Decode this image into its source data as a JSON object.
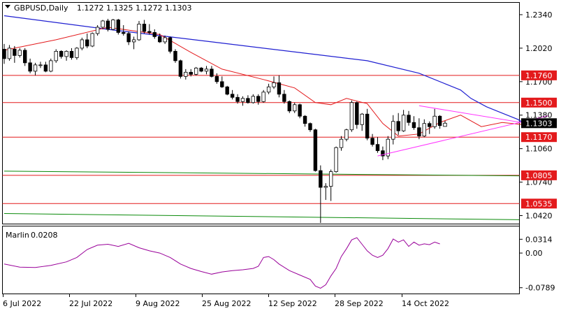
{
  "chart_data": {
    "type": "candlestick",
    "symbol_header": "GBPUSD,Daily",
    "ohlc_header": "1.1272 1.1325 1.1272 1.1303",
    "current_price": "1.1303",
    "price_ticks": [
      "1.2340",
      "1.2020",
      "1.1700",
      "1.1380",
      "1.1060",
      "1.0740",
      "1.0420"
    ],
    "price_levels": [
      {
        "label": "1.1760",
        "value": 1.176
      },
      {
        "label": "1.1500",
        "value": 1.15
      },
      {
        "label": "1.1170",
        "value": 1.117
      },
      {
        "label": "1.0805",
        "value": 1.0805
      },
      {
        "label": "1.0535",
        "value": 1.0535
      }
    ],
    "x_labels": [
      "6 Jul 2022",
      "22 Jul 2022",
      "9 Aug 2022",
      "25 Aug 2022",
      "12 Sep 2022",
      "28 Sep 2022",
      "14 Oct 2022"
    ],
    "ylim": [
      1.037,
      1.24
    ],
    "candles": [
      [
        1.201,
        1.206,
        1.187,
        1.192
      ],
      [
        1.192,
        1.205,
        1.19,
        1.202
      ],
      [
        1.201,
        1.204,
        1.188,
        1.195
      ],
      [
        1.195,
        1.202,
        1.193,
        1.2
      ],
      [
        1.2,
        1.202,
        1.185,
        1.188
      ],
      [
        1.188,
        1.192,
        1.178,
        1.18
      ],
      [
        1.18,
        1.188,
        1.176,
        1.186
      ],
      [
        1.186,
        1.189,
        1.183,
        1.186
      ],
      [
        1.186,
        1.189,
        1.179,
        1.18
      ],
      [
        1.18,
        1.192,
        1.179,
        1.19
      ],
      [
        1.19,
        1.201,
        1.188,
        1.199
      ],
      [
        1.199,
        1.2,
        1.192,
        1.194
      ],
      [
        1.194,
        1.2,
        1.19,
        1.199
      ],
      [
        1.199,
        1.202,
        1.191,
        1.193
      ],
      [
        1.193,
        1.203,
        1.191,
        1.202
      ],
      [
        1.202,
        1.212,
        1.2,
        1.21
      ],
      [
        1.21,
        1.216,
        1.202,
        1.204
      ],
      [
        1.204,
        1.217,
        1.203,
        1.216
      ],
      [
        1.216,
        1.224,
        1.214,
        1.222
      ],
      [
        1.222,
        1.229,
        1.22,
        1.228
      ],
      [
        1.228,
        1.23,
        1.218,
        1.22
      ],
      [
        1.22,
        1.23,
        1.219,
        1.229
      ],
      [
        1.229,
        1.23,
        1.215,
        1.217
      ],
      [
        1.217,
        1.224,
        1.214,
        1.216
      ],
      [
        1.216,
        1.218,
        1.205,
        1.208
      ],
      [
        1.208,
        1.213,
        1.201,
        1.21
      ],
      [
        1.21,
        1.228,
        1.209,
        1.225
      ],
      [
        1.225,
        1.229,
        1.216,
        1.218
      ],
      [
        1.218,
        1.225,
        1.215,
        1.217
      ],
      [
        1.217,
        1.22,
        1.211,
        1.213
      ],
      [
        1.213,
        1.216,
        1.207,
        1.208
      ],
      [
        1.208,
        1.214,
        1.206,
        1.212
      ],
      [
        1.212,
        1.213,
        1.197,
        1.199
      ],
      [
        1.199,
        1.201,
        1.188,
        1.19
      ],
      [
        1.19,
        1.191,
        1.173,
        1.175
      ],
      [
        1.175,
        1.182,
        1.172,
        1.179
      ],
      [
        1.179,
        1.182,
        1.175,
        1.177
      ],
      [
        1.177,
        1.184,
        1.176,
        1.183
      ],
      [
        1.183,
        1.184,
        1.179,
        1.18
      ],
      [
        1.18,
        1.185,
        1.177,
        1.182
      ],
      [
        1.182,
        1.185,
        1.174,
        1.175
      ],
      [
        1.175,
        1.178,
        1.168,
        1.17
      ],
      [
        1.17,
        1.175,
        1.164,
        1.165
      ],
      [
        1.165,
        1.166,
        1.157,
        1.158
      ],
      [
        1.158,
        1.162,
        1.153,
        1.155
      ],
      [
        1.155,
        1.158,
        1.149,
        1.151
      ],
      [
        1.151,
        1.156,
        1.147,
        1.154
      ],
      [
        1.154,
        1.157,
        1.149,
        1.15
      ],
      [
        1.15,
        1.158,
        1.149,
        1.156
      ],
      [
        1.156,
        1.158,
        1.148,
        1.151
      ],
      [
        1.151,
        1.162,
        1.15,
        1.16
      ],
      [
        1.16,
        1.168,
        1.158,
        1.165
      ],
      [
        1.165,
        1.175,
        1.163,
        1.169
      ],
      [
        1.169,
        1.176,
        1.155,
        1.158
      ],
      [
        1.158,
        1.162,
        1.149,
        1.151
      ],
      [
        1.151,
        1.152,
        1.14,
        1.142
      ],
      [
        1.142,
        1.15,
        1.14,
        1.148
      ],
      [
        1.148,
        1.149,
        1.135,
        1.137
      ],
      [
        1.137,
        1.138,
        1.127,
        1.13
      ],
      [
        1.13,
        1.131,
        1.122,
        1.124
      ],
      [
        1.124,
        1.125,
        1.084,
        1.085
      ],
      [
        1.085,
        1.09,
        1.035,
        1.069
      ],
      [
        1.069,
        1.073,
        1.057,
        1.07
      ],
      [
        1.07,
        1.086,
        1.056,
        1.084
      ],
      [
        1.084,
        1.108,
        1.083,
        1.107
      ],
      [
        1.107,
        1.118,
        1.104,
        1.115
      ],
      [
        1.115,
        1.125,
        1.113,
        1.124
      ],
      [
        1.124,
        1.152,
        1.122,
        1.15
      ],
      [
        1.15,
        1.151,
        1.125,
        1.129
      ],
      [
        1.129,
        1.14,
        1.123,
        1.139
      ],
      [
        1.139,
        1.144,
        1.114,
        1.116
      ],
      [
        1.116,
        1.12,
        1.108,
        1.11
      ],
      [
        1.11,
        1.117,
        1.102,
        1.104
      ],
      [
        1.104,
        1.108,
        1.095,
        1.099
      ],
      [
        1.099,
        1.118,
        1.096,
        1.115
      ],
      [
        1.115,
        1.138,
        1.11,
        1.132
      ],
      [
        1.132,
        1.14,
        1.119,
        1.123
      ],
      [
        1.123,
        1.143,
        1.122,
        1.138
      ],
      [
        1.138,
        1.142,
        1.128,
        1.131
      ],
      [
        1.131,
        1.137,
        1.124,
        1.126
      ],
      [
        1.126,
        1.135,
        1.115,
        1.118
      ],
      [
        1.118,
        1.134,
        1.117,
        1.13
      ],
      [
        1.13,
        1.132,
        1.12,
        1.127
      ],
      [
        1.127,
        1.144,
        1.125,
        1.137
      ],
      [
        1.137,
        1.138,
        1.125,
        1.128
      ],
      [
        1.1272,
        1.1325,
        1.1272,
        1.1303
      ]
    ],
    "ma_blue": [
      [
        0,
        1.233
      ],
      [
        20,
        1.22
      ],
      [
        40,
        1.208
      ],
      [
        60,
        1.196
      ],
      [
        70,
        1.19
      ],
      [
        80,
        1.178
      ],
      [
        85,
        1.168
      ],
      [
        88,
        1.162
      ],
      [
        90,
        1.154
      ],
      [
        93,
        1.146
      ],
      [
        96,
        1.14
      ],
      [
        99,
        1.134
      ],
      [
        100,
        1.131
      ]
    ],
    "ma_red": [
      [
        0,
        1.2
      ],
      [
        10,
        1.21
      ],
      [
        20,
        1.222
      ],
      [
        30,
        1.215
      ],
      [
        36,
        1.198
      ],
      [
        42,
        1.182
      ],
      [
        50,
        1.172
      ],
      [
        56,
        1.164
      ],
      [
        60,
        1.15
      ],
      [
        63,
        1.148
      ],
      [
        66,
        1.154
      ],
      [
        70,
        1.149
      ],
      [
        73,
        1.13
      ],
      [
        76,
        1.118
      ],
      [
        80,
        1.12
      ],
      [
        84,
        1.131
      ],
      [
        88,
        1.138
      ],
      [
        92,
        1.127
      ],
      [
        96,
        1.131
      ],
      [
        100,
        1.129
      ]
    ],
    "ma_green_1": [
      [
        0,
        1.0845
      ],
      [
        100,
        1.08
      ]
    ],
    "ma_green_2": [
      [
        0,
        1.044
      ],
      [
        100,
        1.038
      ]
    ],
    "triangle_upper": [
      [
        80,
        1.147
      ],
      [
        96,
        1.134
      ]
    ],
    "triangle_lower": [
      [
        72,
        1.099
      ],
      [
        96,
        1.127
      ]
    ],
    "indicator": {
      "name": "Marlin",
      "value_label": "0.0208",
      "ticks": [
        "0.0314",
        "0.00",
        "-0.0789"
      ],
      "ylim": [
        -0.0889,
        0.051
      ],
      "values": [
        [
          0,
          -0.025
        ],
        [
          3,
          -0.032
        ],
        [
          6,
          -0.033
        ],
        [
          9,
          -0.028
        ],
        [
          12,
          -0.02
        ],
        [
          14,
          -0.01
        ],
        [
          16,
          0.008
        ],
        [
          18,
          0.018
        ],
        [
          20,
          0.02
        ],
        [
          22,
          0.015
        ],
        [
          24,
          0.022
        ],
        [
          26,
          0.012
        ],
        [
          28,
          0.005
        ],
        [
          30,
          0.0
        ],
        [
          32,
          -0.01
        ],
        [
          34,
          -0.025
        ],
        [
          36,
          -0.035
        ],
        [
          38,
          -0.042
        ],
        [
          40,
          -0.048
        ],
        [
          42,
          -0.043
        ],
        [
          44,
          -0.04
        ],
        [
          46,
          -0.038
        ],
        [
          48,
          -0.035
        ],
        [
          49,
          -0.03
        ],
        [
          50,
          -0.01
        ],
        [
          51,
          -0.008
        ],
        [
          52,
          -0.015
        ],
        [
          53,
          -0.025
        ],
        [
          55,
          -0.04
        ],
        [
          57,
          -0.05
        ],
        [
          59,
          -0.06
        ],
        [
          60,
          -0.075
        ],
        [
          61,
          -0.08
        ],
        [
          62,
          -0.072
        ],
        [
          63,
          -0.052
        ],
        [
          64,
          -0.035
        ],
        [
          65,
          -0.008
        ],
        [
          66,
          0.01
        ],
        [
          67,
          0.03
        ],
        [
          68,
          0.035
        ],
        [
          69,
          0.02
        ],
        [
          70,
          0.005
        ],
        [
          71,
          -0.005
        ],
        [
          72,
          -0.01
        ],
        [
          73,
          -0.005
        ],
        [
          74,
          0.01
        ],
        [
          75,
          0.032
        ],
        [
          76,
          0.025
        ],
        [
          77,
          0.03
        ],
        [
          78,
          0.015
        ],
        [
          79,
          0.025
        ],
        [
          80,
          0.018
        ],
        [
          81,
          0.021
        ],
        [
          82,
          0.019
        ],
        [
          83,
          0.025
        ],
        [
          84,
          0.0208
        ]
      ]
    }
  },
  "colors": {
    "bull_fill": "#ffffff",
    "bear_fill": "#000000",
    "candle_stroke": "#000000",
    "level_line": "#e31a1c",
    "level_label_bg": "#e31a1c",
    "ma_blue": "#1f1fd1",
    "ma_red": "#e31a1c",
    "ma_green": "#0a8a0a",
    "triangle": "#ff33ff",
    "indicator": "#990099",
    "price_label_bg": "#000000"
  }
}
